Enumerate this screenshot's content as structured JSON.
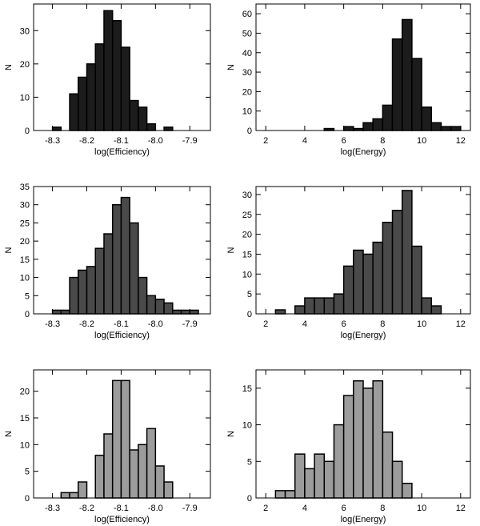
{
  "chart_data": [
    {
      "type": "histogram",
      "x_label": "log(Efficiency)",
      "y_label": "N",
      "color": "#1c1c1c",
      "bins": [
        -8.3,
        -8.275,
        -8.25,
        -8.225,
        -8.2,
        -8.175,
        -8.15,
        -8.125,
        -8.1,
        -8.075,
        -8.05,
        -8.025,
        -8.0,
        -7.975,
        -7.95
      ],
      "counts": [
        1,
        0,
        11,
        16,
        20,
        26,
        36,
        33,
        25,
        9,
        7,
        2,
        0,
        1
      ],
      "xlim": [
        -8.355,
        -7.84
      ],
      "ylim": [
        0,
        38
      ],
      "xticks": [
        -8.3,
        -8.2,
        -8.1,
        {
          "value": -8.0,
          "label": "-8.0"
        },
        -7.9
      ],
      "yticks": [
        0,
        10,
        20,
        30
      ]
    },
    {
      "type": "histogram",
      "x_label": "log(Energy)",
      "y_label": "N",
      "color": "#1c1c1c",
      "bins": [
        5,
        5.5,
        6,
        6.5,
        7,
        7.5,
        8,
        8.5,
        9,
        9.5,
        10,
        10.5,
        11,
        11.5,
        12
      ],
      "counts": [
        1,
        0,
        2,
        1,
        4,
        6,
        13,
        47,
        57,
        37,
        12,
        4,
        2,
        2
      ],
      "xlim": [
        1.5,
        12.5
      ],
      "ylim": [
        0,
        65
      ],
      "xticks": [
        2,
        4,
        6,
        8,
        10,
        12
      ],
      "yticks": [
        0,
        10,
        20,
        30,
        40,
        50,
        60
      ]
    },
    {
      "type": "histogram",
      "x_label": "log(Efficiency)",
      "y_label": "N",
      "color": "#4a4a4a",
      "bins": [
        -8.3,
        -8.275,
        -8.25,
        -8.225,
        -8.2,
        -8.175,
        -8.15,
        -8.125,
        -8.1,
        -8.075,
        -8.05,
        -8.025,
        -8.0,
        -7.975,
        -7.95,
        -7.925,
        -7.9,
        -7.875
      ],
      "counts": [
        1,
        1,
        10,
        12,
        13,
        18,
        22,
        30,
        32,
        25,
        10,
        5,
        4,
        3,
        1,
        1,
        1
      ],
      "xlim": [
        -8.355,
        -7.84
      ],
      "ylim": [
        0,
        35
      ],
      "xticks": [
        -8.3,
        -8.2,
        -8.1,
        {
          "value": -8.0,
          "label": "-8.0"
        },
        -7.9
      ],
      "yticks": [
        0,
        5,
        10,
        15,
        20,
        25,
        30,
        35
      ]
    },
    {
      "type": "histogram",
      "x_label": "log(Energy)",
      "y_label": "N",
      "color": "#4a4a4a",
      "bins": [
        2.5,
        3,
        3.5,
        4,
        4.5,
        5,
        5.5,
        6,
        6.5,
        7,
        7.5,
        8,
        8.5,
        9,
        9.5,
        10,
        10.5,
        11
      ],
      "counts": [
        1,
        0,
        2,
        4,
        4,
        4,
        5,
        12,
        16,
        15,
        18,
        23,
        26,
        31,
        17,
        4,
        2
      ],
      "xlim": [
        1.5,
        12.5
      ],
      "ylim": [
        0,
        32
      ],
      "xticks": [
        2,
        4,
        6,
        8,
        10,
        12
      ],
      "yticks": [
        0,
        5,
        10,
        15,
        20,
        25,
        30
      ]
    },
    {
      "type": "histogram",
      "x_label": "log(Efficiency)",
      "y_label": "N",
      "color": "#9c9c9c",
      "bins": [
        -8.275,
        -8.25,
        -8.225,
        -8.2,
        -8.175,
        -8.15,
        -8.125,
        -8.1,
        -8.075,
        -8.05,
        -8.025,
        -8.0,
        -7.975,
        -7.95
      ],
      "counts": [
        1,
        1,
        3,
        0,
        8,
        12,
        22,
        22,
        9,
        10,
        13,
        6,
        3
      ],
      "xlim": [
        -8.355,
        -7.84
      ],
      "ylim": [
        0,
        24
      ],
      "xticks": [
        -8.3,
        -8.2,
        -8.1,
        {
          "value": -8.0,
          "label": "-8.0"
        },
        -7.9
      ],
      "yticks": [
        0,
        5,
        10,
        15,
        20
      ]
    },
    {
      "type": "histogram",
      "x_label": "log(Energy)",
      "y_label": "N",
      "color": "#9c9c9c",
      "bins": [
        2.5,
        3,
        3.5,
        4,
        4.5,
        5,
        5.5,
        6,
        6.5,
        7,
        7.5,
        8,
        8.5,
        9,
        9.5
      ],
      "counts": [
        1,
        1,
        6,
        4,
        6,
        5,
        10,
        14,
        16,
        15,
        16,
        9,
        5,
        2
      ],
      "xlim": [
        1.5,
        12.5
      ],
      "ylim": [
        0,
        17.5
      ],
      "xticks": [
        2,
        4,
        6,
        8,
        10,
        12
      ],
      "yticks": [
        0,
        5,
        10,
        15
      ]
    }
  ]
}
